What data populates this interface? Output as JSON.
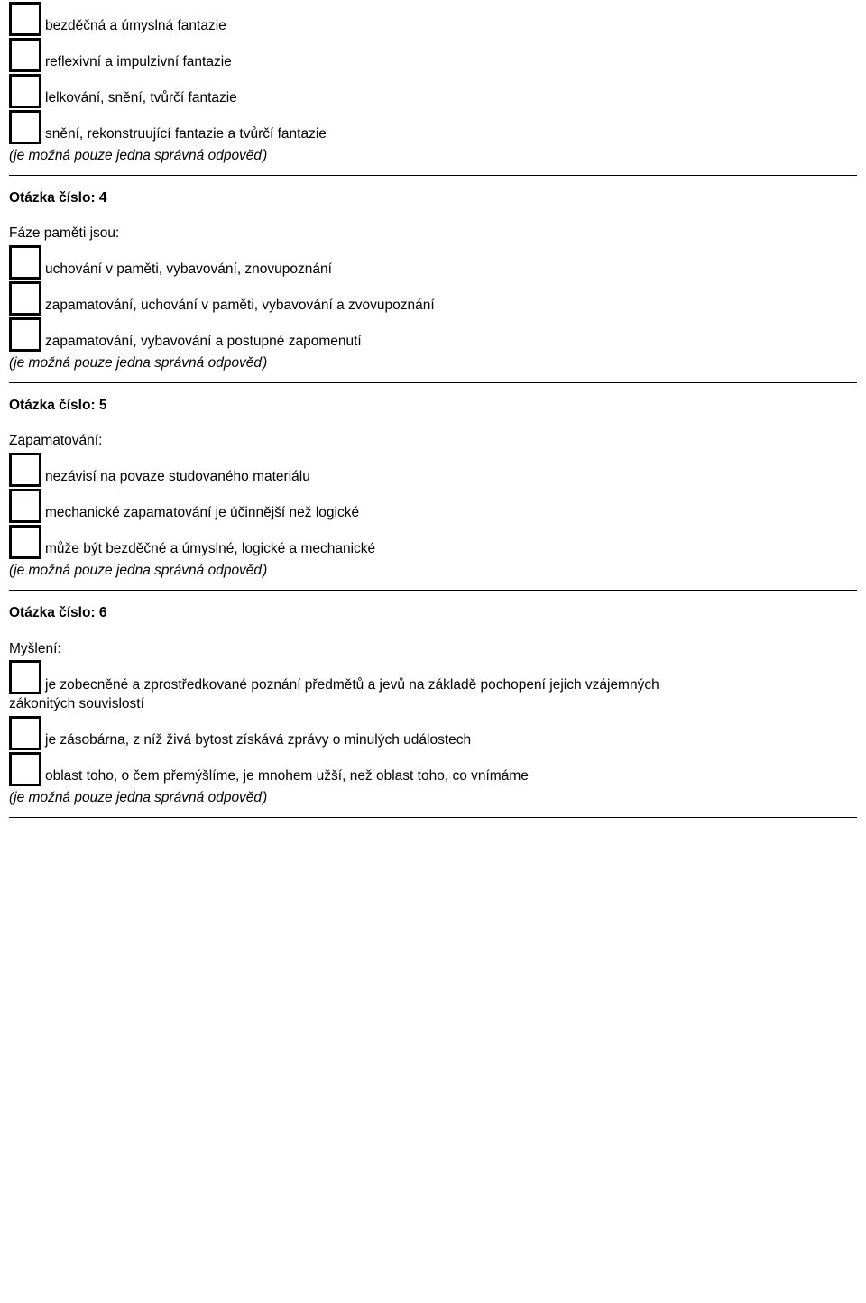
{
  "common": {
    "note": "(je možná pouze jedna správná odpověď)"
  },
  "block0": {
    "opts": [
      "bezděčná a úmyslná fantazie",
      "reflexivní a impulzivní fantazie",
      "lelkování, snění, tvůrčí fantazie",
      "snění, rekonstruující fantazie a tvůrčí fantazie"
    ]
  },
  "q4": {
    "title": "Otázka číslo: 4",
    "text": "Fáze paměti jsou:",
    "opts": [
      "uchování v paměti, vybavování, znovupoznání",
      "zapamatování, uchování v paměti, vybavování a zvovupoznání",
      "zapamatování, vybavování a postupné zapomenutí"
    ]
  },
  "q5": {
    "title": "Otázka číslo: 5",
    "text": "Zapamatování:",
    "opts": [
      "nezávisí na povaze studovaného materiálu",
      "mechanické zapamatování je účinnější než logické",
      "může být bezděčné a úmyslné, logické a mechanické"
    ]
  },
  "q6": {
    "title": "Otázka číslo: 6",
    "text": "Myšlení:",
    "opts": [
      "je zobecněné a zprostředkované poznání předmětů a jevů na základě pochopení jejich vzájemných",
      "je zásobárna, z níž živá bytost získává zprávy o minulých událostech",
      "oblast toho, o čem přemýšlíme, je mnohem užší, než oblast toho, co vnímáme"
    ],
    "opt0_cont": "zákonitých souvislostí"
  }
}
